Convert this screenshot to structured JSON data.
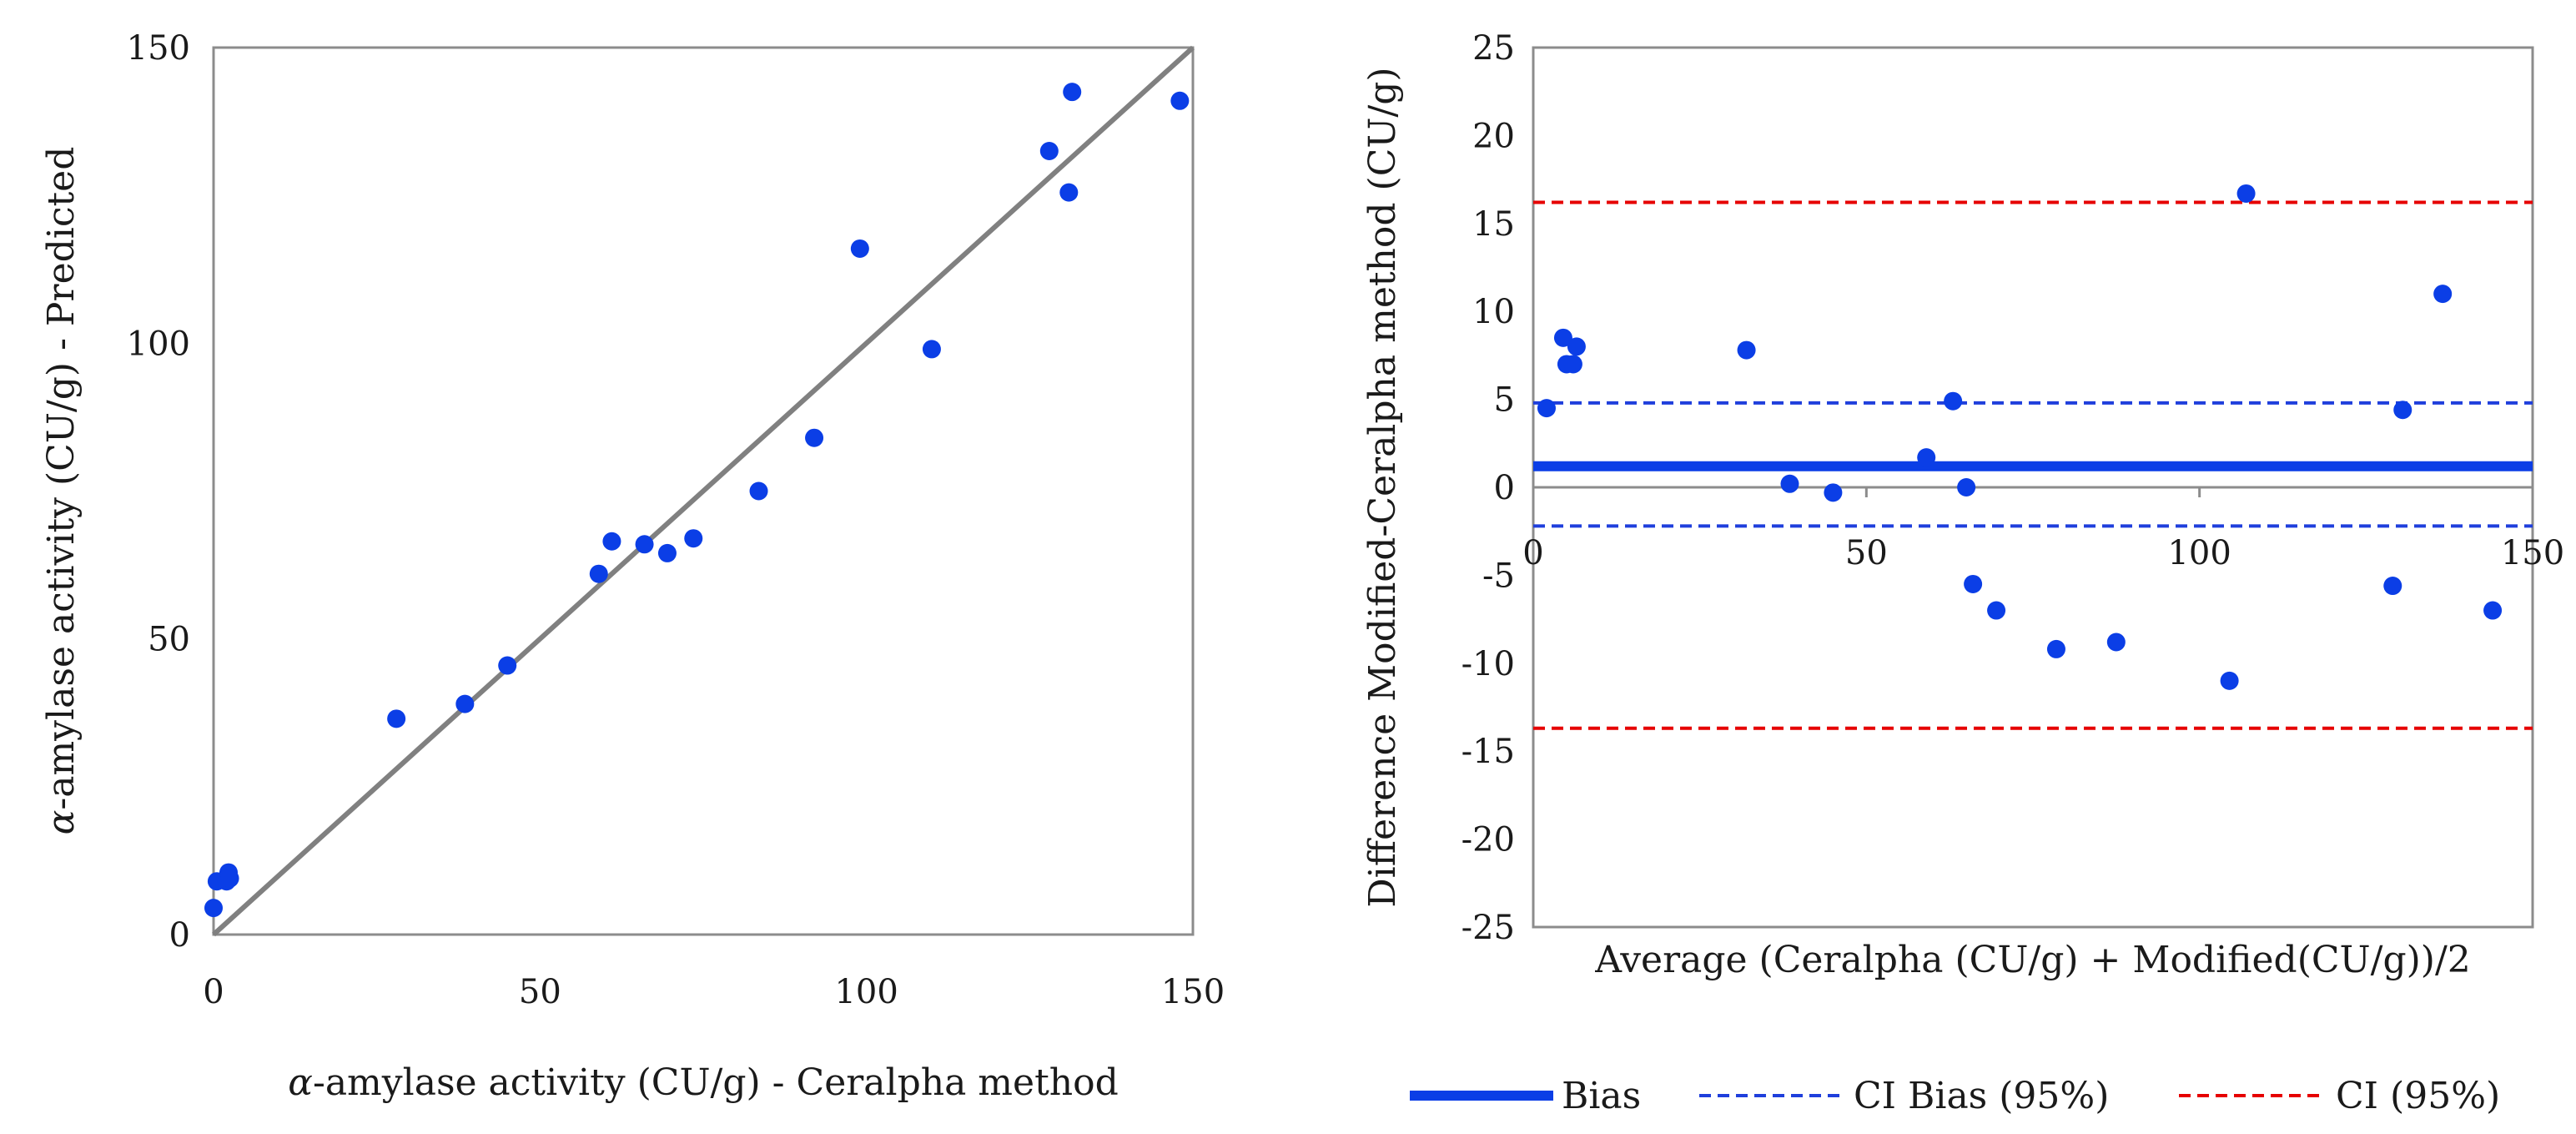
{
  "colors": {
    "point": "#0b3ee6",
    "diag": "#808080",
    "bias": "#0b3ee6",
    "ci_bias": "#1f3fdc",
    "ci": "#e60000",
    "frame": "#8c8c8c"
  },
  "chart_data": [
    {
      "type": "scatter",
      "title": "",
      "xlabel_greek": "α",
      "xlabel_rest": "-amylase activity (CU/g) - Ceralpha method",
      "ylabel_greek": "α",
      "ylabel_rest": "-amylase activity (CU/g) - Predicted",
      "xlim": [
        0,
        150
      ],
      "ylim": [
        0,
        150
      ],
      "xticks": [
        "0",
        "50",
        "100",
        "150"
      ],
      "yticks": [
        "0",
        "50",
        "100",
        "150"
      ],
      "reference_line": {
        "from": [
          0,
          0
        ],
        "to": [
          150,
          150
        ]
      },
      "points": [
        [
          0,
          4.5
        ],
        [
          0.5,
          9
        ],
        [
          2,
          9
        ],
        [
          2.3,
          10.5
        ],
        [
          2.5,
          9.5
        ],
        [
          28,
          36.5
        ],
        [
          38.5,
          39
        ],
        [
          45,
          45.5
        ],
        [
          59,
          61
        ],
        [
          61,
          66.5
        ],
        [
          66,
          66
        ],
        [
          69.5,
          64.5
        ],
        [
          73.5,
          67
        ],
        [
          83.5,
          75
        ],
        [
          92,
          84
        ],
        [
          99,
          116
        ],
        [
          110,
          99
        ],
        [
          128,
          132.5
        ],
        [
          131,
          125.5
        ],
        [
          131.5,
          142.5
        ],
        [
          148,
          141
        ]
      ]
    },
    {
      "type": "scatter",
      "title": "",
      "xlabel": "Average (Ceralpha (CU/g) + Modified(CU/g))/2",
      "ylabel": "Difference Modified-Ceralpha method (CU/g)",
      "xlim": [
        0,
        150
      ],
      "ylim": [
        -25,
        25
      ],
      "xticks": [
        "0",
        "50",
        "100",
        "150"
      ],
      "yticks": [
        "25",
        "20",
        "15",
        "10",
        "5",
        "0",
        "-5",
        "-10",
        "-15",
        "-20",
        "-25"
      ],
      "points": [
        [
          2,
          4.5
        ],
        [
          4.5,
          8.5
        ],
        [
          5,
          7
        ],
        [
          6,
          7
        ],
        [
          6.5,
          8
        ],
        [
          32,
          7.8
        ],
        [
          38.5,
          0.2
        ],
        [
          45,
          -0.3
        ],
        [
          59,
          1.7
        ],
        [
          63,
          4.9
        ],
        [
          65,
          0
        ],
        [
          66,
          -5.5
        ],
        [
          69.5,
          -7
        ],
        [
          78.5,
          -9.2
        ],
        [
          87.5,
          -8.8
        ],
        [
          104.5,
          -11
        ],
        [
          107,
          16.7
        ],
        [
          129,
          -5.6
        ],
        [
          130.5,
          4.4
        ],
        [
          136.5,
          11
        ],
        [
          144,
          -7
        ]
      ],
      "lines": [
        {
          "name": "Bias",
          "y": 1.2,
          "style": "solid"
        },
        {
          "name": "CI Bias (95%)",
          "y": 4.8,
          "style": "dashed"
        },
        {
          "name": "CI Bias (95%)",
          "y": -2.2,
          "style": "dashed"
        },
        {
          "name": "CI (95%)",
          "y": 16.2,
          "style": "dashed"
        },
        {
          "name": "CI (95%)",
          "y": -13.7,
          "style": "dashed"
        }
      ],
      "legend": [
        {
          "key": "bias",
          "label": "Bias"
        },
        {
          "key": "ci_bias",
          "label": "CI Bias (95%)"
        },
        {
          "key": "ci",
          "label": "CI (95%)"
        }
      ],
      "legend_position": "bottom"
    }
  ]
}
